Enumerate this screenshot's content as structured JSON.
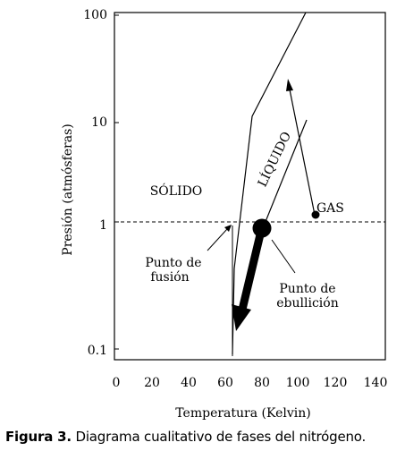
{
  "chart_data": {
    "type": "diagram",
    "xlabel": "Temperatura (Kelvin)",
    "ylabel": "Presión (atmósferas)",
    "x_ticks": [
      "0",
      "20",
      "40",
      "60",
      "80",
      "100",
      "120",
      "140"
    ],
    "y_ticks": [
      "100",
      "10",
      "1",
      "0.1"
    ],
    "xlim": [
      0,
      140
    ],
    "ylim": [
      0.1,
      100
    ],
    "y_scale": "log",
    "regions": [
      "SÓLIDO",
      "LÍQUIDO",
      "GAS"
    ],
    "annotations": {
      "melting_point": [
        "Punto de",
        "fusión"
      ],
      "boiling_point": [
        "Punto de",
        "ebullición"
      ]
    },
    "points": {
      "boiling_point": {
        "x": 80,
        "y": 0.9
      },
      "gas_point": {
        "x": 105,
        "y": 1.1
      }
    },
    "reference_line_pressure": 1
  },
  "caption": {
    "label": "Figura 3.",
    "text": "Diagrama cualitativo de fases del nitrógeno."
  }
}
